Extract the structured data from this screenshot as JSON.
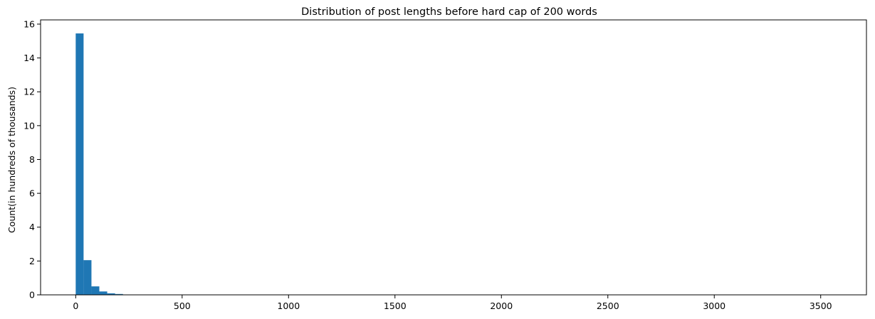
{
  "chart_data": {
    "type": "bar",
    "title": "Distribution of post lengths before hard cap of 200 words",
    "xlabel": "",
    "ylabel": "Count(in hundreds of thousands)",
    "xlim": [
      -165,
      3715
    ],
    "ylim": [
      0,
      16.25
    ],
    "xticks": [
      0,
      500,
      1000,
      1500,
      2000,
      2500,
      3000,
      3500
    ],
    "yticks": [
      0,
      2,
      4,
      6,
      8,
      10,
      12,
      14,
      16
    ],
    "bin_width": 37,
    "bins": [
      {
        "x0": 0,
        "x1": 37,
        "value": 15.45
      },
      {
        "x0": 37,
        "x1": 74,
        "value": 2.05
      },
      {
        "x0": 74,
        "x1": 111,
        "value": 0.5
      },
      {
        "x0": 111,
        "x1": 148,
        "value": 0.2
      },
      {
        "x0": 148,
        "x1": 185,
        "value": 0.09
      },
      {
        "x0": 185,
        "x1": 222,
        "value": 0.05
      },
      {
        "x0": 222,
        "x1": 259,
        "value": 0.02
      },
      {
        "x0": 259,
        "x1": 296,
        "value": 0.01
      },
      {
        "x0": 296,
        "x1": 333,
        "value": 0.005
      }
    ],
    "bar_color": "#1f77b4",
    "grid": false,
    "legend": "none"
  }
}
